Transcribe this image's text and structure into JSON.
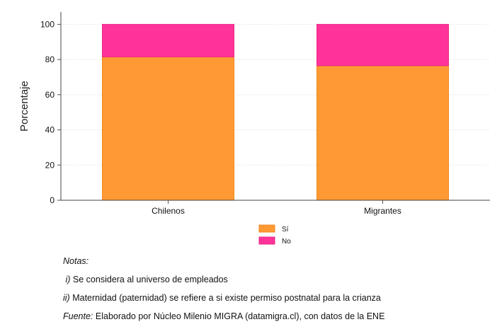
{
  "chart_data": {
    "type": "bar",
    "stacked": true,
    "categories": [
      "Chilenos",
      "Migrantes"
    ],
    "series": [
      {
        "name": "Sí",
        "color": "#ff9933",
        "values": [
          81.5,
          76.5
        ]
      },
      {
        "name": "No",
        "color": "#ff3399",
        "values": [
          18.5,
          23.5
        ]
      }
    ],
    "ylabel": "Porcentaje",
    "xlabel": "",
    "ylim": [
      0,
      107
    ],
    "yticks": [
      0,
      20,
      40,
      60,
      80,
      100
    ],
    "grid": true,
    "legend_position": "bottom-center"
  },
  "notes": {
    "heading": "Notas:",
    "note1_marker": "i)",
    "note1_text": "Se considera al universo de empleados",
    "note2_marker": "ii)",
    "note2_text": "Maternidad (paternidad) se refiere a si existe permiso postnatal para la crianza",
    "source_label": "Fuente:",
    "source_text": "Elaborado por Núcleo Milenio MIGRA (datamigra.cl), con datos de la ENE"
  }
}
